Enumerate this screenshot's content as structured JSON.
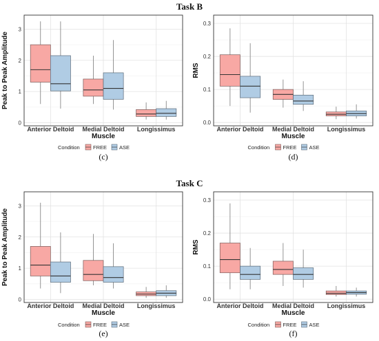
{
  "tasks": [
    {
      "title": "Task B"
    },
    {
      "title": "Task C"
    }
  ],
  "legend": {
    "title": "Condition",
    "conditions": [
      {
        "name": "FREE",
        "color": "#F8A8A4",
        "stroke": "#7a5a58"
      },
      {
        "name": "ASE",
        "color": "#B0CCE4",
        "stroke": "#5a6a78"
      }
    ]
  },
  "chart_data": [
    {
      "type": "boxplot",
      "panel_label": "(c)",
      "task": "Task B",
      "xlabel": "Muscle",
      "ylabel": "Peak to Peak Amplitude",
      "ylim": [
        -0.1,
        3.45
      ],
      "yticks": [
        0,
        1,
        2,
        3
      ],
      "categories": [
        "Anterior Deltoid",
        "Medial Deltoid",
        "Longissimus"
      ],
      "series": [
        {
          "name": "FREE",
          "boxes": [
            {
              "min": 0.6,
              "q1": 1.3,
              "median": 1.7,
              "q3": 2.5,
              "max": 3.25
            },
            {
              "min": 0.6,
              "q1": 0.85,
              "median": 1.05,
              "q3": 1.4,
              "max": 2.15
            },
            {
              "min": 0.1,
              "q1": 0.2,
              "median": 0.28,
              "q3": 0.42,
              "max": 0.65
            }
          ]
        },
        {
          "name": "ASE",
          "boxes": [
            {
              "min": 0.45,
              "q1": 1.02,
              "median": 1.25,
              "q3": 2.15,
              "max": 3.25
            },
            {
              "min": 0.42,
              "q1": 0.75,
              "median": 1.1,
              "q3": 1.6,
              "max": 2.65
            },
            {
              "min": 0.1,
              "q1": 0.2,
              "median": 0.3,
              "q3": 0.45,
              "max": 0.7
            }
          ]
        }
      ]
    },
    {
      "type": "boxplot",
      "panel_label": "(d)",
      "task": "Task B",
      "xlabel": "Muscle",
      "ylabel": "RMS",
      "ylim": [
        -0.01,
        0.325
      ],
      "yticks": [
        0.0,
        0.1,
        0.2,
        0.3
      ],
      "tick_format": 1,
      "categories": [
        "Anterior Deltoid",
        "Medial Deltoid",
        "Longissimus"
      ],
      "series": [
        {
          "name": "FREE",
          "boxes": [
            {
              "min": 0.05,
              "q1": 0.11,
              "median": 0.145,
              "q3": 0.205,
              "max": 0.285
            },
            {
              "min": 0.045,
              "q1": 0.07,
              "median": 0.085,
              "q3": 0.1,
              "max": 0.13
            },
            {
              "min": 0.01,
              "q1": 0.02,
              "median": 0.025,
              "q3": 0.032,
              "max": 0.048
            }
          ]
        },
        {
          "name": "ASE",
          "boxes": [
            {
              "min": 0.03,
              "q1": 0.075,
              "median": 0.11,
              "q3": 0.14,
              "max": 0.24
            },
            {
              "min": 0.035,
              "q1": 0.055,
              "median": 0.065,
              "q3": 0.083,
              "max": 0.125
            },
            {
              "min": 0.012,
              "q1": 0.02,
              "median": 0.027,
              "q3": 0.035,
              "max": 0.055
            }
          ]
        }
      ]
    },
    {
      "type": "boxplot",
      "panel_label": "(e)",
      "task": "Task C",
      "xlabel": "Muscle",
      "ylabel": "Peak to Peak Amplitude",
      "ylim": [
        -0.1,
        3.45
      ],
      "yticks": [
        0,
        1,
        2,
        3
      ],
      "categories": [
        "Anterior Deltoid",
        "Medial Deltoid",
        "Longissimus"
      ],
      "series": [
        {
          "name": "FREE",
          "boxes": [
            {
              "min": 0.35,
              "q1": 0.75,
              "median": 1.1,
              "q3": 1.7,
              "max": 3.1
            },
            {
              "min": 0.45,
              "q1": 0.6,
              "median": 0.8,
              "q3": 1.25,
              "max": 2.1
            },
            {
              "min": 0.05,
              "q1": 0.12,
              "median": 0.17,
              "q3": 0.24,
              "max": 0.4
            }
          ]
        },
        {
          "name": "ASE",
          "boxes": [
            {
              "min": 0.2,
              "q1": 0.55,
              "median": 0.75,
              "q3": 1.2,
              "max": 2.15
            },
            {
              "min": 0.35,
              "q1": 0.55,
              "median": 0.7,
              "q3": 1.05,
              "max": 1.8
            },
            {
              "min": 0.05,
              "q1": 0.12,
              "median": 0.2,
              "q3": 0.28,
              "max": 0.45
            }
          ]
        }
      ]
    },
    {
      "type": "boxplot",
      "panel_label": "(f)",
      "task": "Task C",
      "xlabel": "Muscle",
      "ylabel": "RMS",
      "ylim": [
        -0.01,
        0.325
      ],
      "yticks": [
        0.0,
        0.1,
        0.2,
        0.3
      ],
      "tick_format": 1,
      "categories": [
        "Anterior Deltoid",
        "Medial Deltoid",
        "Longissimus"
      ],
      "series": [
        {
          "name": "FREE",
          "boxes": [
            {
              "min": 0.03,
              "q1": 0.08,
              "median": 0.12,
              "q3": 0.17,
              "max": 0.29
            },
            {
              "min": 0.04,
              "q1": 0.075,
              "median": 0.09,
              "q3": 0.115,
              "max": 0.17
            },
            {
              "min": 0.008,
              "q1": 0.014,
              "median": 0.018,
              "q3": 0.025,
              "max": 0.04
            }
          ]
        },
        {
          "name": "ASE",
          "boxes": [
            {
              "min": 0.03,
              "q1": 0.06,
              "median": 0.075,
              "q3": 0.1,
              "max": 0.155
            },
            {
              "min": 0.035,
              "q1": 0.06,
              "median": 0.075,
              "q3": 0.095,
              "max": 0.15
            },
            {
              "min": 0.008,
              "q1": 0.015,
              "median": 0.02,
              "q3": 0.025,
              "max": 0.035
            }
          ]
        }
      ]
    }
  ]
}
